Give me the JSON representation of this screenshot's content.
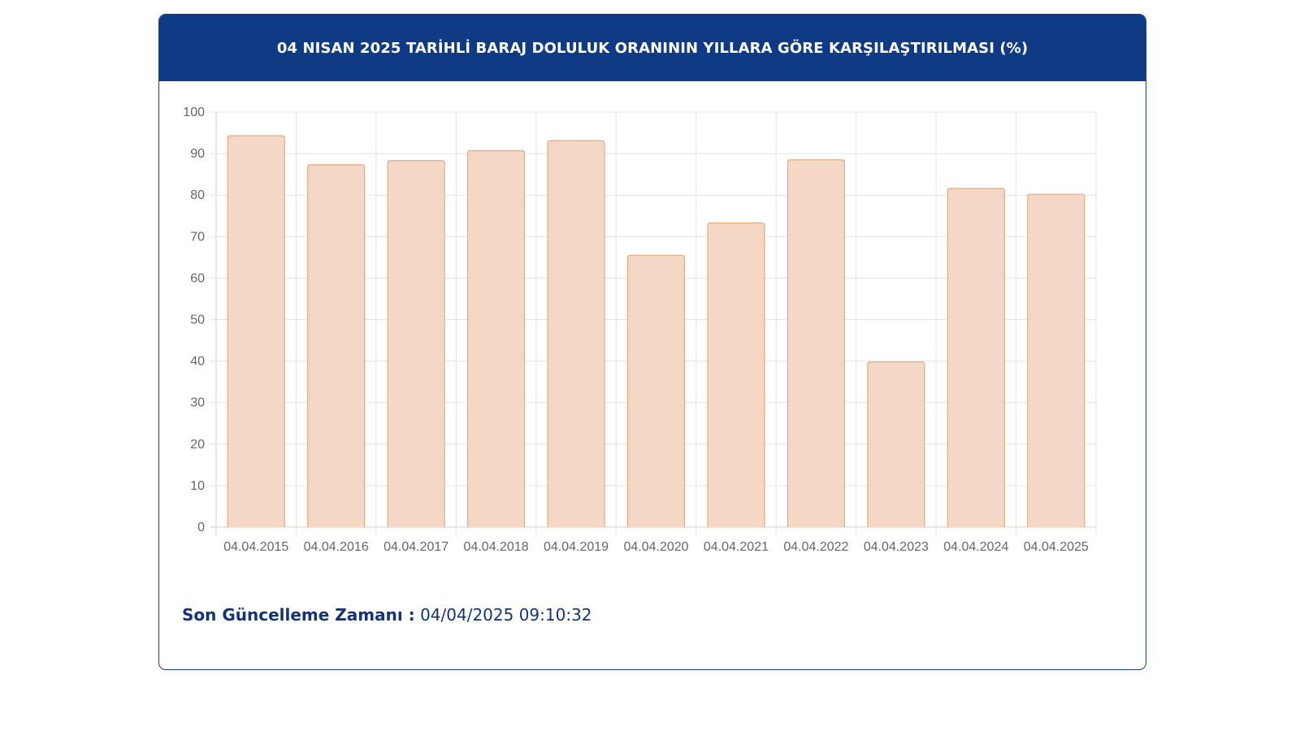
{
  "header": {
    "title": "04 NISAN 2025 TARİHLİ BARAJ DOLULUK ORANININ YILLARA GÖRE KARŞILAŞTIRILMASI (%)"
  },
  "footer": {
    "label": "Son Güncelleme Zamanı :",
    "value": "04/04/2025 09:10:32"
  },
  "colors": {
    "header_bg": "#0f3b85",
    "bar_fill": "#f4d8c5",
    "bar_stroke": "#e3ab83",
    "grid": "#e3e3e3",
    "footer_text": "#12357a"
  },
  "chart_data": {
    "type": "bar",
    "categories": [
      "04.04.2015",
      "04.04.2016",
      "04.04.2017",
      "04.04.2018",
      "04.04.2019",
      "04.04.2020",
      "04.04.2021",
      "04.04.2022",
      "04.04.2023",
      "04.04.2024",
      "04.04.2025"
    ],
    "values": [
      94.3,
      87.3,
      88.3,
      90.7,
      93.1,
      65.5,
      73.3,
      88.5,
      39.8,
      81.6,
      80.2
    ],
    "ylim": [
      0,
      100
    ],
    "yticks": [
      "0",
      "10",
      "20",
      "30",
      "40",
      "50",
      "60",
      "70",
      "80",
      "90",
      "100"
    ],
    "grid": true,
    "legend": "none"
  }
}
